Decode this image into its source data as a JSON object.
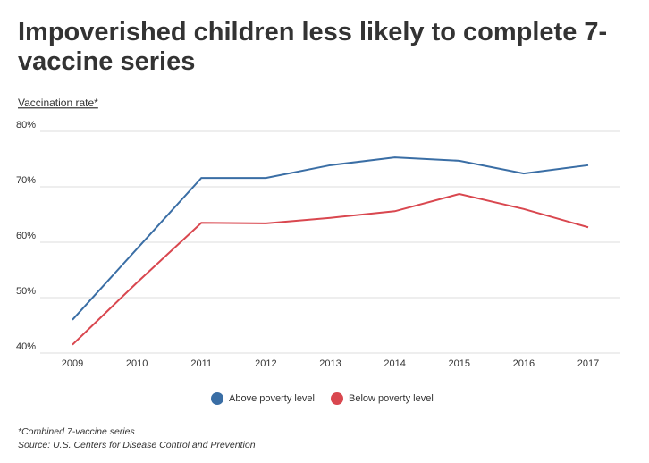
{
  "chart_data": {
    "type": "line",
    "title": "Impoverished children less likely to complete 7-vaccine series",
    "y_axis_label": "Vaccination rate*",
    "note": "*Combined 7-vaccine series",
    "source": "Source: U.S. Centers for Disease Control and Prevention",
    "categories": [
      "2009",
      "2010",
      "2011",
      "2012",
      "2013",
      "2014",
      "2015",
      "2016",
      "2017"
    ],
    "series": [
      {
        "name": "Above poverty level",
        "color": "#3a6ea5",
        "values": [
          46.0,
          58.8,
          71.6,
          71.6,
          73.9,
          75.3,
          74.7,
          72.4,
          73.9
        ]
      },
      {
        "name": "Below poverty level",
        "color": "#d9474f",
        "values": [
          41.5,
          52.7,
          63.5,
          63.4,
          64.4,
          65.6,
          68.7,
          66.0,
          62.7
        ]
      }
    ],
    "ylim": [
      40,
      80
    ],
    "yticks": [
      {
        "value": 40,
        "label": "40%"
      },
      {
        "value": 50,
        "label": "50%"
      },
      {
        "value": 60,
        "label": "60%"
      },
      {
        "value": 70,
        "label": "70%"
      },
      {
        "value": 80,
        "label": "80%"
      }
    ],
    "grid": true,
    "legend": "bottom"
  }
}
